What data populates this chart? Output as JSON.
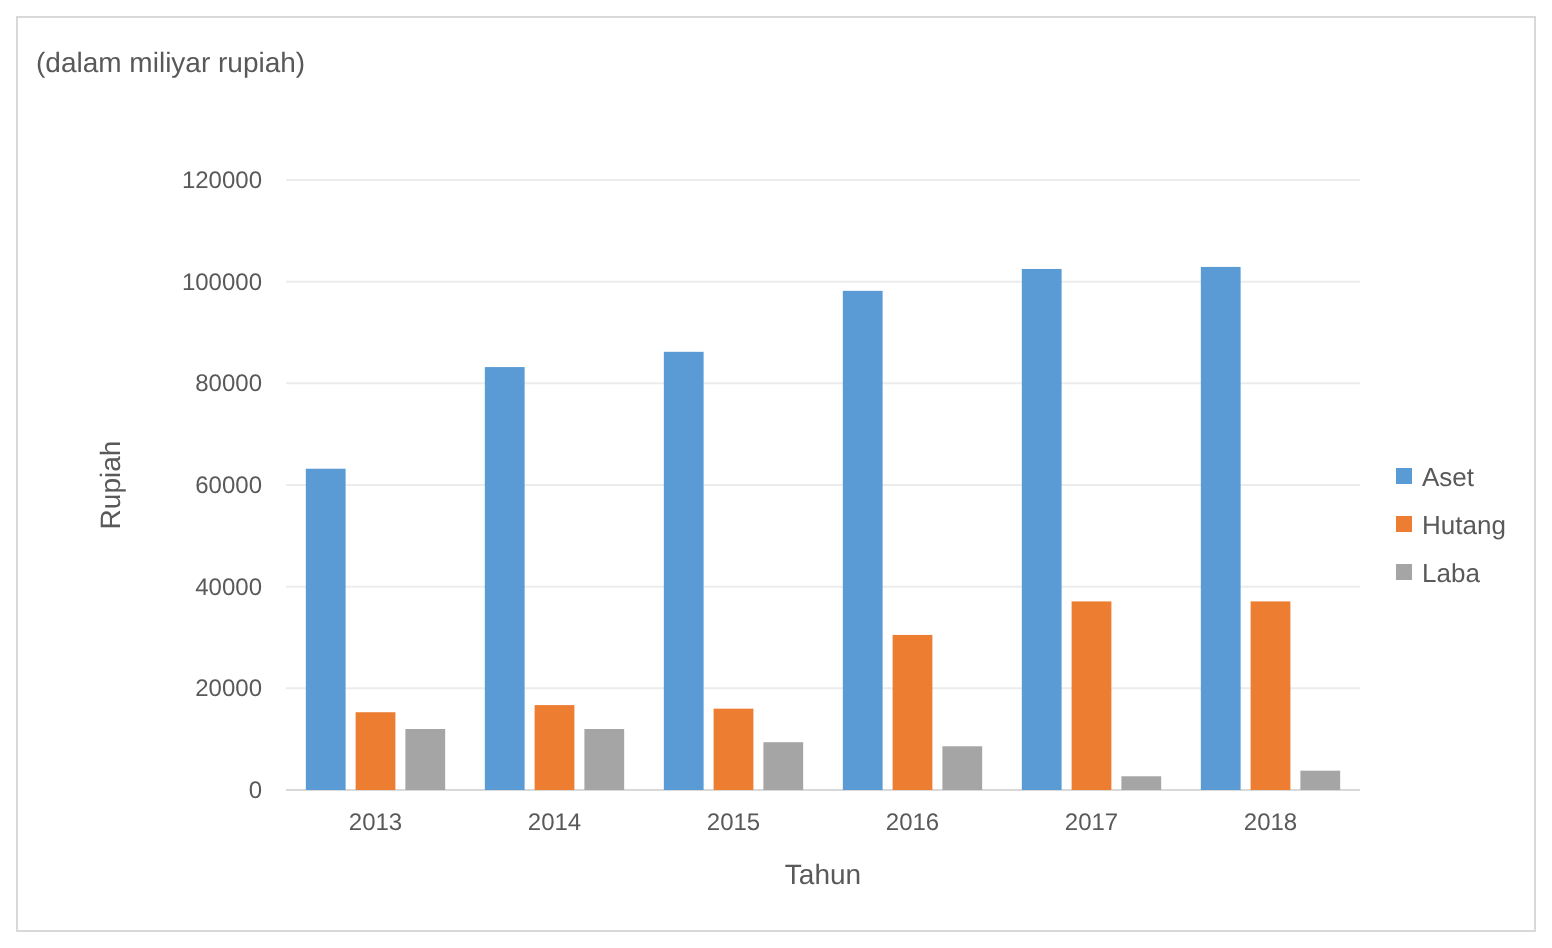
{
  "chart_data": {
    "type": "bar",
    "title": "(dalam miliyar rupiah)",
    "xlabel": "Tahun",
    "ylabel": "Rupiah",
    "categories": [
      "2013",
      "2014",
      "2015",
      "2016",
      "2017",
      "2018"
    ],
    "series": [
      {
        "name": "Aset",
        "color": "#5b9bd5",
        "values": [
          63200,
          83200,
          86200,
          98200,
          102500,
          102900
        ]
      },
      {
        "name": "Hutang",
        "color": "#ed7d31",
        "values": [
          15300,
          16700,
          16000,
          30500,
          37100,
          37100
        ]
      },
      {
        "name": "Laba",
        "color": "#a5a5a5",
        "values": [
          12000,
          12000,
          9400,
          8600,
          2700,
          3800
        ]
      }
    ],
    "ylim": [
      0,
      120000
    ],
    "yticks": [
      0,
      20000,
      40000,
      60000,
      80000,
      100000,
      120000
    ],
    "grid": "y",
    "legend": "right"
  }
}
